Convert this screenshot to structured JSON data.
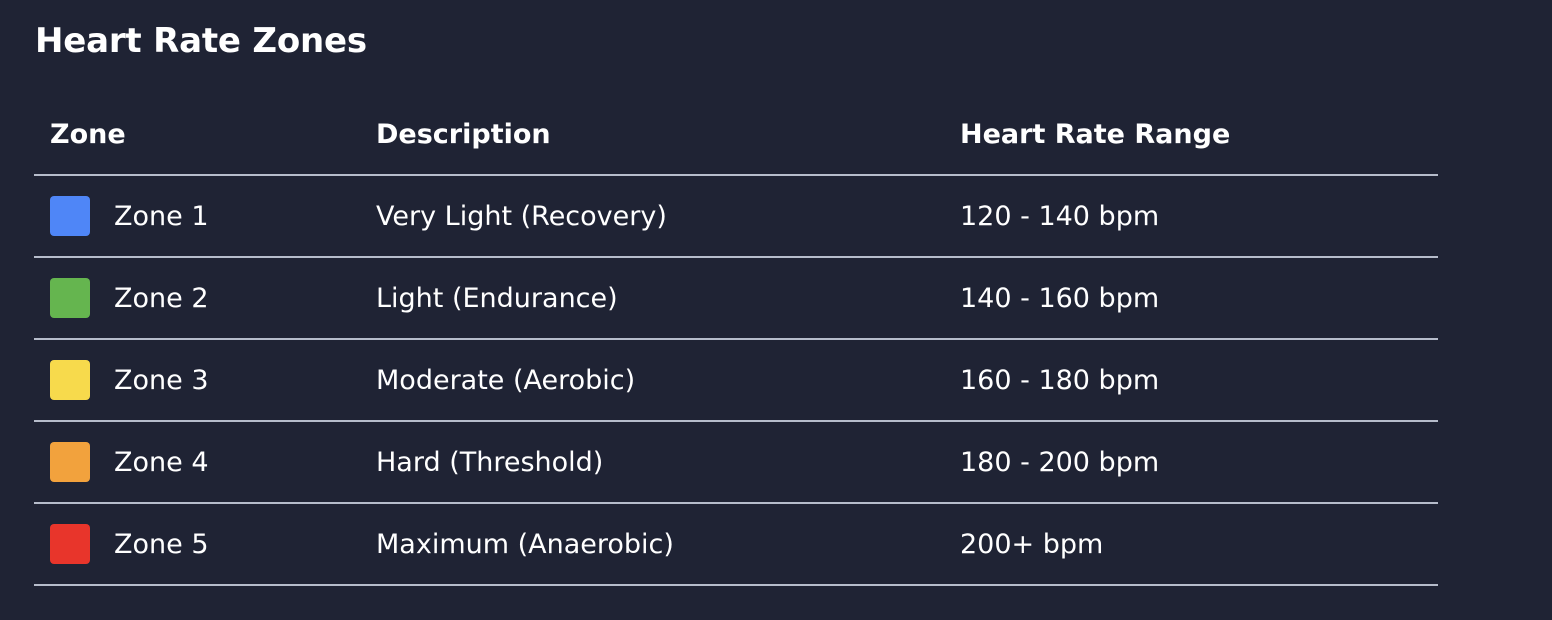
{
  "title": "Heart Rate Zones",
  "table": {
    "headers": {
      "zone": "Zone",
      "description": "Description",
      "range": "Heart Rate Range"
    },
    "rows": [
      {
        "zone": "Zone 1",
        "description": "Very Light (Recovery)",
        "range": "120 - 140 bpm",
        "color": "#4f86f7"
      },
      {
        "zone": "Zone 2",
        "description": "Light (Endurance)",
        "range": "140 - 160 bpm",
        "color": "#65b54f"
      },
      {
        "zone": "Zone 3",
        "description": "Moderate (Aerobic)",
        "range": "160 - 180 bpm",
        "color": "#f7da4c"
      },
      {
        "zone": "Zone 4",
        "description": "Hard (Threshold)",
        "range": "180 - 200 bpm",
        "color": "#f2a23d"
      },
      {
        "zone": "Zone 5",
        "description": "Maximum (Anaerobic)",
        "range": "200+ bpm",
        "color": "#e8352b"
      }
    ]
  }
}
